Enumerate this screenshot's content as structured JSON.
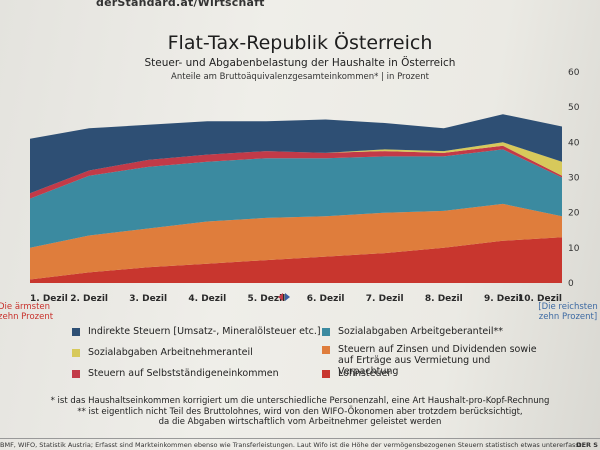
{
  "masthead": "derStandard.at/Wirtschaft",
  "title": "Flat-Tax-Republik Österreich",
  "subtitle": "Steuer- und Abgabenbelastung der Haushalte in Österreich",
  "units_note": "Anteile am Bruttoäquivalenzgesamteinkommen* | in Prozent",
  "side_notes": {
    "left": [
      "Die ärmsten",
      "zehn Prozent"
    ],
    "right": [
      "[Die reichsten",
      "zehn Prozent]"
    ]
  },
  "colors": {
    "lohnsteuer": "#c8362e",
    "zinsen": "#df7d3c",
    "sozial_ag": "#3b8aa0",
    "selbst": "#c23a48",
    "sozial_an": "#d7c95b",
    "indirekt": "#2e4f74"
  },
  "chart_data": {
    "type": "area",
    "stacked": true,
    "title": "Flat-Tax-Republik Österreich",
    "categories": [
      "1. Dezil",
      "2. Dezil",
      "3. Dezil",
      "4. Dezil",
      "5. Dezil",
      "6. Dezil",
      "7. Dezil",
      "8. Dezil",
      "9. Dezil",
      "10. Dezil"
    ],
    "ylim": [
      0,
      60
    ],
    "yticks": [
      0,
      10,
      20,
      30,
      40,
      50,
      60
    ],
    "series": [
      {
        "key": "lohnsteuer",
        "name": "Lohnsteuer",
        "values": [
          1,
          3,
          4.5,
          5.5,
          6.5,
          7.5,
          8.5,
          10,
          12,
          13
        ]
      },
      {
        "key": "zinsen",
        "name": "Steuern auf Zinsen und Dividenden sowie auf Erträge aus Vermietung und Verpachtung",
        "values": [
          9,
          10.5,
          11,
          12,
          12,
          11.5,
          11.5,
          10.5,
          10.5,
          6
        ]
      },
      {
        "key": "sozial_ag",
        "name": "Sozialabgaben Arbeitgeberanteil**",
        "values": [
          14,
          17,
          17.5,
          17,
          17,
          16.5,
          16,
          15.5,
          15.5,
          11
        ]
      },
      {
        "key": "selbst",
        "name": "Steuern auf Selbstständigeneinkommen",
        "values": [
          1.5,
          1.5,
          2,
          2,
          2,
          1.5,
          1.5,
          1,
          1,
          0.5
        ]
      },
      {
        "key": "sozial_an",
        "name": "Sozialabgaben Arbeitnehmeranteil",
        "values": [
          0,
          0,
          0,
          0,
          0,
          0,
          0.5,
          0.5,
          1,
          4
        ]
      },
      {
        "key": "indirekt",
        "name": "Indirekte Steuern [Umsatz-, Mineralölsteuer etc.]",
        "values": [
          15.5,
          12,
          10,
          9.5,
          8.5,
          9.5,
          7.5,
          6.5,
          8,
          10
        ]
      }
    ]
  },
  "legend": [
    {
      "key": "indirekt",
      "label": "Indirekte Steuern [Umsatz-, Mineralölsteuer etc.]"
    },
    {
      "key": "sozial_ag",
      "label": "Sozialabgaben Arbeitgeberanteil**"
    },
    {
      "key": "sozial_an",
      "label": "Sozialabgaben Arbeitnehmeranteil"
    },
    {
      "key": "zinsen",
      "label": "Steuern auf Zinsen und Dividenden sowie auf Erträge aus Vermietung und Verpachtung"
    },
    {
      "key": "selbst",
      "label": "Steuern auf Selbstständigeneinkommen"
    },
    {
      "key": "lohnsteuer",
      "label": "Lohnsteuer"
    }
  ],
  "footnotes": [
    "* ist das Haushaltseinkommen korrigiert um die unterschiedliche Personenzahl, eine Art Haushalt-pro-Kopf-Rechnung",
    "** ist eigentlich nicht Teil des Bruttolohnes, wird von den WIFO-Ökonomen aber trotzdem berücksichtigt,",
    "da die Abgaben wirtschaftlich vom Arbeitnehmer geleistet werden"
  ],
  "source": "BMF, WIFO, Statistik Austria; Erfasst sind Markteinkommen ebenso wie Transferleistungen. Laut Wifo ist die Höhe der vermögensbezogenen Steuern statistisch etwas untererfasst.",
  "source_right": "DER S"
}
